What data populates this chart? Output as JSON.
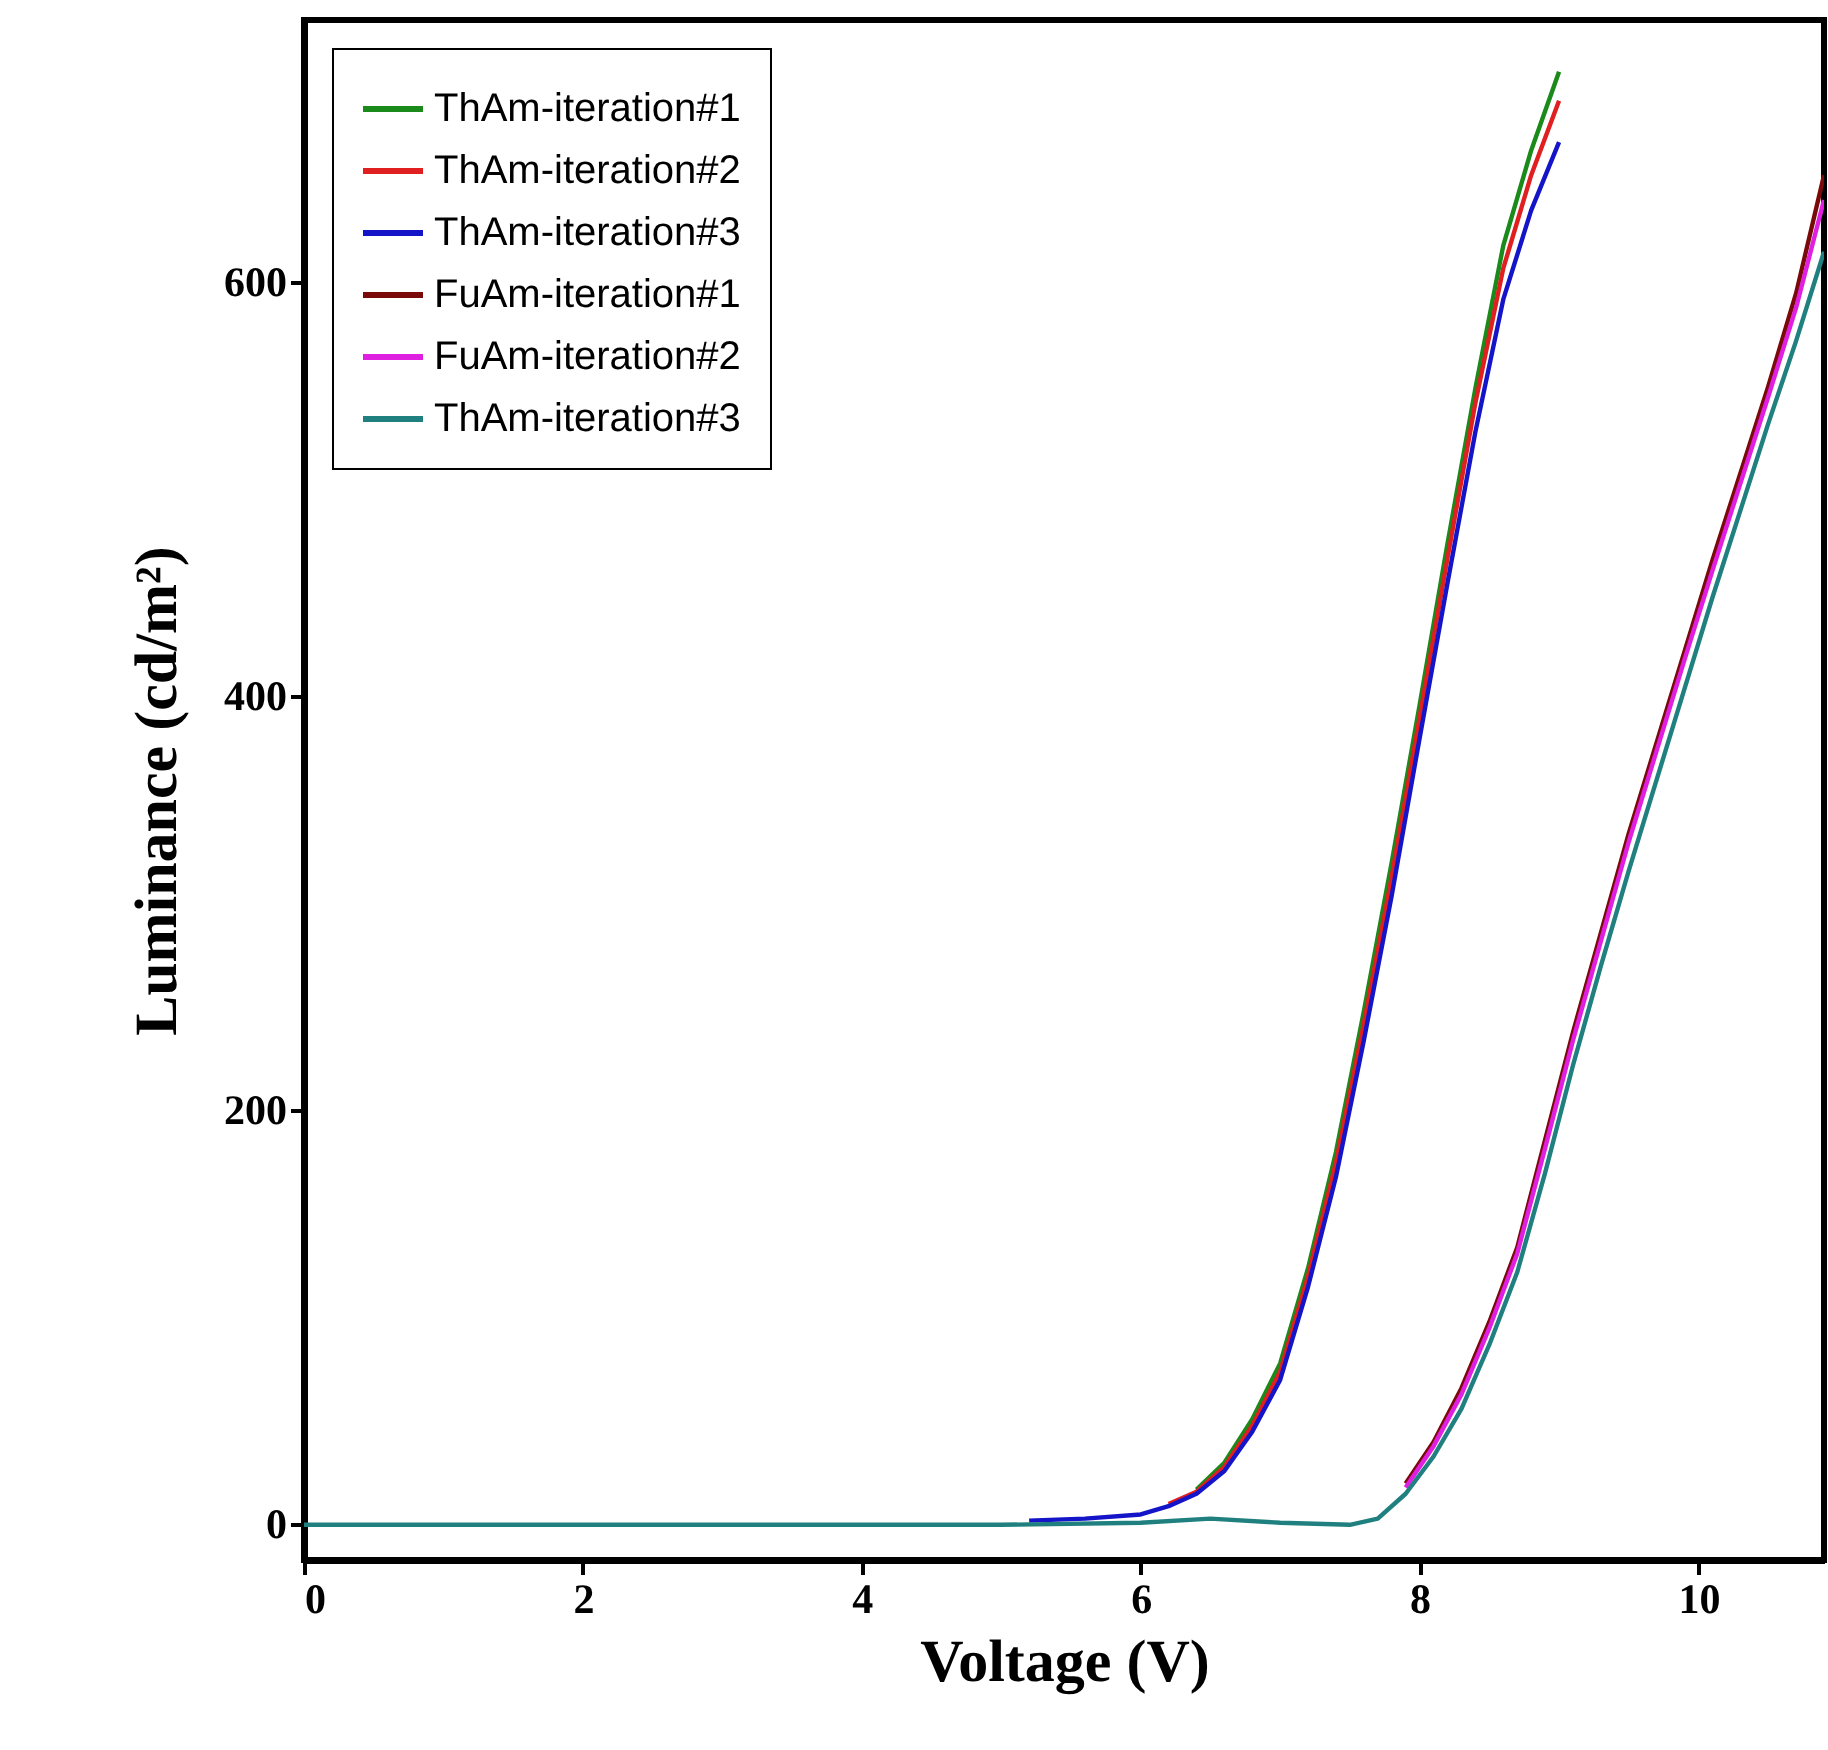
{
  "chart_data": {
    "type": "line",
    "xlabel": "Voltage (V)",
    "ylabel": "Luminance (cd/m²)",
    "xlim": [
      0,
      10.9
    ],
    "ylim": [
      -17,
      727
    ],
    "xticks": [
      0,
      2,
      4,
      6,
      8,
      10
    ],
    "yticks": [
      0,
      200,
      400,
      600
    ],
    "legend": "top left",
    "series": [
      {
        "name": "ThAm-iteration#1",
        "color": "#1a8a1a",
        "x": [
          6.4,
          6.6,
          6.8,
          7,
          7.2,
          7.4,
          7.6,
          7.8,
          8,
          8.2,
          8.4,
          8.6,
          8.8,
          9
        ],
        "values": [
          17,
          30,
          51,
          78,
          124,
          180,
          248,
          320,
          396,
          474,
          549,
          618,
          664,
          702
        ]
      },
      {
        "name": "ThAm-iteration#2",
        "color": "#e02020",
        "x": [
          6.2,
          6.4,
          6.6,
          6.8,
          7,
          7.2,
          7.4,
          7.6,
          7.8,
          8,
          8.2,
          8.4,
          8.6,
          8.8,
          9
        ],
        "values": [
          10,
          16,
          28,
          48,
          74,
          120,
          175,
          242,
          313,
          390,
          467,
          542,
          607,
          652,
          688
        ]
      },
      {
        "name": "ThAm-iteration#3",
        "color": "#1414c8",
        "x": [
          5.2,
          5.6,
          6,
          6.2,
          6.4,
          6.6,
          6.8,
          7,
          7.2,
          7.4,
          7.6,
          7.8,
          8,
          8.2,
          8.4,
          8.6,
          8.8,
          9
        ],
        "values": [
          2,
          3,
          5,
          9,
          15,
          26,
          45,
          70,
          115,
          168,
          234,
          304,
          380,
          455,
          528,
          592,
          635,
          668
        ]
      },
      {
        "name": "FuAm-iteration#1",
        "color": "#7a0a0a",
        "x": [
          7.9,
          8.1,
          8.3,
          8.5,
          8.7,
          8.9,
          9.1,
          9.3,
          9.5,
          9.7,
          9.9,
          10.1,
          10.3,
          10.5,
          10.7,
          10.9
        ],
        "values": [
          20,
          40,
          66,
          98,
          134,
          186,
          238,
          286,
          334,
          378,
          422,
          466,
          508,
          550,
          595,
          652
        ]
      },
      {
        "name": "FuAm-iteration#2",
        "color": "#e020e0",
        "x": [
          7.9,
          8.1,
          8.3,
          8.5,
          8.7,
          8.9,
          9.1,
          9.3,
          9.5,
          9.7,
          9.9,
          10.1,
          10.3,
          10.5,
          10.7,
          10.9
        ],
        "values": [
          18,
          38,
          63,
          95,
          131,
          182,
          234,
          282,
          330,
          374,
          418,
          461,
          503,
          545,
          588,
          640
        ]
      },
      {
        "name": "ThAm-iteration#3",
        "color": "#208080",
        "x": [
          0,
          1,
          2,
          3,
          4,
          5,
          6,
          6.5,
          7,
          7.5,
          7.7,
          7.9,
          8.1,
          8.3,
          8.5,
          8.7,
          8.9,
          9.1,
          9.3,
          9.5,
          9.7,
          9.9,
          10.1,
          10.3,
          10.5,
          10.7,
          10.9
        ],
        "values": [
          0,
          0,
          0,
          0,
          0,
          0,
          1,
          3,
          1,
          0,
          3,
          15,
          33,
          56,
          87,
          122,
          170,
          222,
          270,
          316,
          360,
          404,
          448,
          490,
          532,
          572,
          615
        ]
      }
    ]
  }
}
